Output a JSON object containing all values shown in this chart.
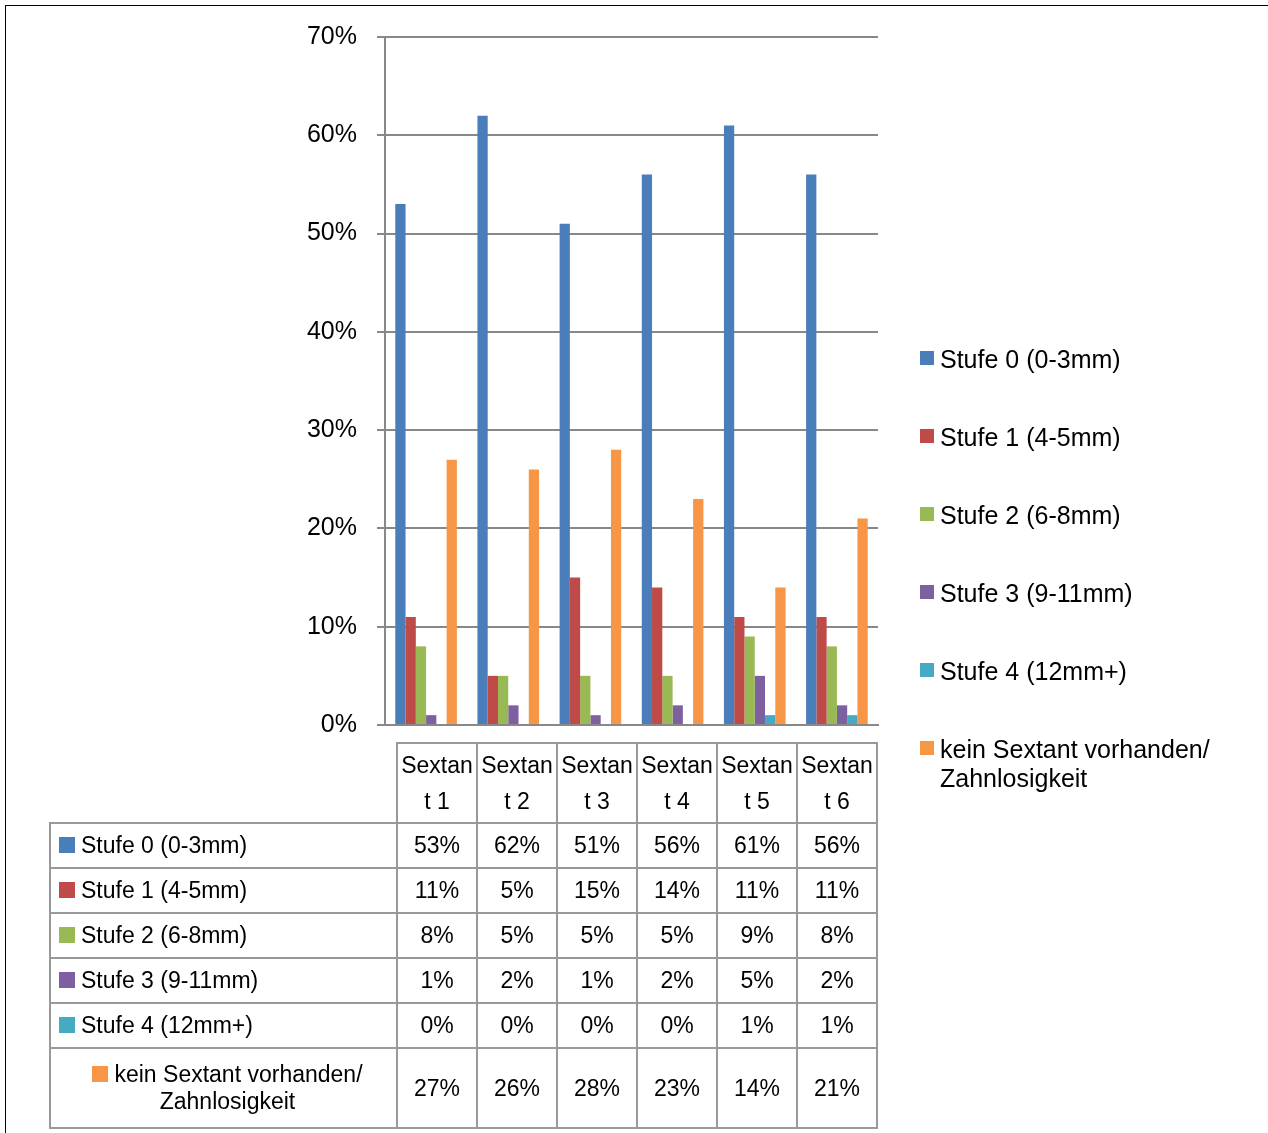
{
  "chart_data": {
    "type": "bar",
    "categories": [
      "Sextant 1",
      "Sextant 2",
      "Sextant 3",
      "Sextant 4",
      "Sextant 5",
      "Sextant 6"
    ],
    "series": [
      {
        "name": "Stufe 0 (0-3mm)",
        "color": "#4a7ebb",
        "values": [
          53,
          62,
          51,
          56,
          61,
          56
        ],
        "value_labels": [
          "53%",
          "62%",
          "51%",
          "56%",
          "61%",
          "56%"
        ]
      },
      {
        "name": "Stufe 1 (4-5mm)",
        "color": "#be4b48",
        "values": [
          11,
          5,
          15,
          14,
          11,
          11
        ],
        "value_labels": [
          "11%",
          "5%",
          "15%",
          "14%",
          "11%",
          "11%"
        ]
      },
      {
        "name": "Stufe 2 (6-8mm)",
        "color": "#98b954",
        "values": [
          8,
          5,
          5,
          5,
          9,
          8
        ],
        "value_labels": [
          "8%",
          "5%",
          "5%",
          "5%",
          "9%",
          "8%"
        ]
      },
      {
        "name": "Stufe 3 (9-11mm)",
        "color": "#7d60a0",
        "values": [
          1,
          2,
          1,
          2,
          5,
          2
        ],
        "value_labels": [
          "1%",
          "2%",
          "1%",
          "2%",
          "5%",
          "2%"
        ]
      },
      {
        "name": "Stufe 4 (12mm+)",
        "color": "#46aac5",
        "values": [
          0,
          0,
          0,
          0,
          1,
          1
        ],
        "value_labels": [
          "0%",
          "0%",
          "0%",
          "0%",
          "1%",
          "1%"
        ]
      },
      {
        "name": "kein Sextant vorhanden/ Zahnlosigkeit",
        "color": "#f79646",
        "values": [
          27,
          26,
          28,
          23,
          14,
          21
        ],
        "value_labels": [
          "27%",
          "26%",
          "28%",
          "23%",
          "14%",
          "21%"
        ]
      }
    ],
    "ylim": [
      0,
      70
    ],
    "yticks": [
      {
        "value": 0,
        "label": "0%"
      },
      {
        "value": 10,
        "label": "10%"
      },
      {
        "value": 20,
        "label": "20%"
      },
      {
        "value": 30,
        "label": "30%"
      },
      {
        "value": 40,
        "label": "40%"
      },
      {
        "value": 50,
        "label": "50%"
      },
      {
        "value": 60,
        "label": "60%"
      },
      {
        "value": 70,
        "label": "70%"
      }
    ],
    "grid": "y",
    "legend": "right"
  }
}
